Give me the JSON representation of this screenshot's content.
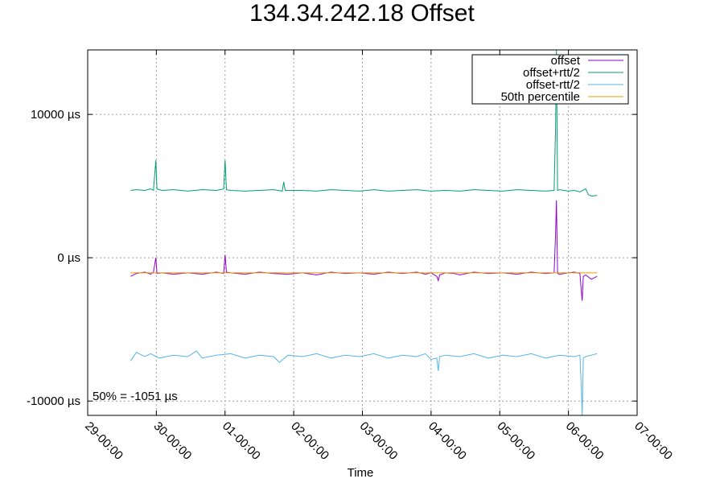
{
  "chart_data": {
    "type": "line",
    "title": "134.34.242.18 Offset",
    "xlabel": "Time",
    "ylabel": "",
    "x_unit": "hours",
    "xlim": [
      0,
      192
    ],
    "ylim": [
      -11000,
      14500
    ],
    "x_ticks": [
      {
        "value": 0,
        "label": "29-00:00"
      },
      {
        "value": 24,
        "label": "30-00:00"
      },
      {
        "value": 48,
        "label": "01-00:00"
      },
      {
        "value": 72,
        "label": "02-00:00"
      },
      {
        "value": 96,
        "label": "03-00:00"
      },
      {
        "value": 120,
        "label": "04-00:00"
      },
      {
        "value": 144,
        "label": "05-00:00"
      },
      {
        "value": 168,
        "label": "06-00:00"
      },
      {
        "value": 192,
        "label": "07-00:00"
      }
    ],
    "y_ticks": [
      {
        "value": 10000,
        "label": "10000 µs"
      },
      {
        "value": 0,
        "label": "0 µs"
      },
      {
        "value": -10000,
        "label": "-10000 µs"
      }
    ],
    "grid": true,
    "legend_position": "top-right",
    "series": [
      {
        "name": "offset",
        "color": "#9400d3",
        "points": [
          [
            15,
            -1300
          ],
          [
            17,
            -1100
          ],
          [
            20,
            -1000
          ],
          [
            22,
            -1150
          ],
          [
            23,
            -1000
          ],
          [
            23.8,
            0
          ],
          [
            24.2,
            -1100
          ],
          [
            26,
            -1050
          ],
          [
            30,
            -1150
          ],
          [
            35,
            -1050
          ],
          [
            40,
            -1150
          ],
          [
            45,
            -1000
          ],
          [
            47.5,
            -1100
          ],
          [
            48,
            200
          ],
          [
            48.5,
            -1000
          ],
          [
            50,
            -1050
          ],
          [
            55,
            -1150
          ],
          [
            60,
            -1000
          ],
          [
            65,
            -1100
          ],
          [
            70,
            -1150
          ],
          [
            75,
            -1050
          ],
          [
            80,
            -1200
          ],
          [
            85,
            -1000
          ],
          [
            90,
            -1100
          ],
          [
            95,
            -1050
          ],
          [
            100,
            -1150
          ],
          [
            105,
            -1000
          ],
          [
            110,
            -1100
          ],
          [
            115,
            -1000
          ],
          [
            118,
            -1150
          ],
          [
            120,
            -1050
          ],
          [
            122,
            -1300
          ],
          [
            122.5,
            -1600
          ],
          [
            123,
            -1200
          ],
          [
            125,
            -1050
          ],
          [
            128,
            -1100
          ],
          [
            130,
            -1200
          ],
          [
            135,
            -1000
          ],
          [
            140,
            -1100
          ],
          [
            145,
            -1050
          ],
          [
            150,
            -1150
          ],
          [
            155,
            -1000
          ],
          [
            160,
            -1100
          ],
          [
            163,
            -1050
          ],
          [
            163.5,
            1600
          ],
          [
            163.8,
            4000
          ],
          [
            164.2,
            -1100
          ],
          [
            165,
            -1150
          ],
          [
            168,
            -1050
          ],
          [
            170,
            -1000
          ],
          [
            172,
            -1100
          ],
          [
            172.5,
            -2300
          ],
          [
            172.8,
            -3000
          ],
          [
            173.2,
            -1300
          ],
          [
            174,
            -1200
          ],
          [
            176,
            -1500
          ],
          [
            178,
            -1300
          ]
        ]
      },
      {
        "name": "offset+rtt/2",
        "color": "#009e73",
        "points": [
          [
            15,
            4700
          ],
          [
            17,
            4750
          ],
          [
            20,
            4700
          ],
          [
            22,
            4800
          ],
          [
            23,
            4700
          ],
          [
            23.8,
            6800
          ],
          [
            24.2,
            4800
          ],
          [
            26,
            4700
          ],
          [
            30,
            4750
          ],
          [
            35,
            4650
          ],
          [
            40,
            4750
          ],
          [
            45,
            4700
          ],
          [
            47.5,
            4800
          ],
          [
            48,
            6800
          ],
          [
            48.5,
            4750
          ],
          [
            50,
            4700
          ],
          [
            55,
            4650
          ],
          [
            60,
            4700
          ],
          [
            65,
            4750
          ],
          [
            68,
            4650
          ],
          [
            68.5,
            5300
          ],
          [
            69,
            4700
          ],
          [
            75,
            4700
          ],
          [
            80,
            4650
          ],
          [
            85,
            4750
          ],
          [
            90,
            4700
          ],
          [
            95,
            4650
          ],
          [
            100,
            4750
          ],
          [
            105,
            4650
          ],
          [
            110,
            4700
          ],
          [
            115,
            4750
          ],
          [
            120,
            4650
          ],
          [
            125,
            4700
          ],
          [
            130,
            4650
          ],
          [
            135,
            4750
          ],
          [
            140,
            4700
          ],
          [
            145,
            4650
          ],
          [
            150,
            4750
          ],
          [
            155,
            4700
          ],
          [
            160,
            4650
          ],
          [
            163,
            4700
          ],
          [
            163.5,
            9000
          ],
          [
            163.8,
            14500
          ],
          [
            164.2,
            4700
          ],
          [
            165,
            4750
          ],
          [
            168,
            4650
          ],
          [
            170,
            4700
          ],
          [
            172,
            4600
          ],
          [
            174,
            4800
          ],
          [
            175,
            4400
          ],
          [
            176,
            4300
          ],
          [
            178,
            4350
          ]
        ]
      },
      {
        "name": "offset-rtt/2",
        "color": "#56b4e9",
        "points": [
          [
            15,
            -7200
          ],
          [
            17,
            -6600
          ],
          [
            20,
            -6900
          ],
          [
            22,
            -6700
          ],
          [
            25,
            -7000
          ],
          [
            30,
            -6800
          ],
          [
            35,
            -6900
          ],
          [
            38,
            -6500
          ],
          [
            40,
            -7000
          ],
          [
            45,
            -6800
          ],
          [
            50,
            -6700
          ],
          [
            55,
            -7000
          ],
          [
            60,
            -6800
          ],
          [
            65,
            -6900
          ],
          [
            67,
            -7300
          ],
          [
            70,
            -6800
          ],
          [
            75,
            -6900
          ],
          [
            80,
            -6700
          ],
          [
            85,
            -7000
          ],
          [
            90,
            -6800
          ],
          [
            95,
            -6900
          ],
          [
            100,
            -6700
          ],
          [
            105,
            -7000
          ],
          [
            110,
            -6800
          ],
          [
            115,
            -6900
          ],
          [
            118,
            -6700
          ],
          [
            120,
            -7100
          ],
          [
            122,
            -7000
          ],
          [
            122.5,
            -7900
          ],
          [
            123,
            -6900
          ],
          [
            125,
            -6800
          ],
          [
            130,
            -6900
          ],
          [
            135,
            -6700
          ],
          [
            140,
            -7000
          ],
          [
            145,
            -6800
          ],
          [
            150,
            -6900
          ],
          [
            155,
            -6700
          ],
          [
            160,
            -7000
          ],
          [
            165,
            -6800
          ],
          [
            170,
            -6900
          ],
          [
            172,
            -6800
          ],
          [
            172.5,
            -9000
          ],
          [
            172.8,
            -11000
          ],
          [
            173.2,
            -7000
          ],
          [
            174,
            -6900
          ],
          [
            176,
            -6800
          ],
          [
            178,
            -6700
          ]
        ]
      },
      {
        "name": "50th percentile",
        "color": "#e69f00",
        "points": [
          [
            15,
            -1051
          ],
          [
            178,
            -1051
          ]
        ]
      }
    ],
    "annotations": [
      {
        "text": "50% = -1051 µs",
        "position": "bottom-left"
      }
    ]
  }
}
